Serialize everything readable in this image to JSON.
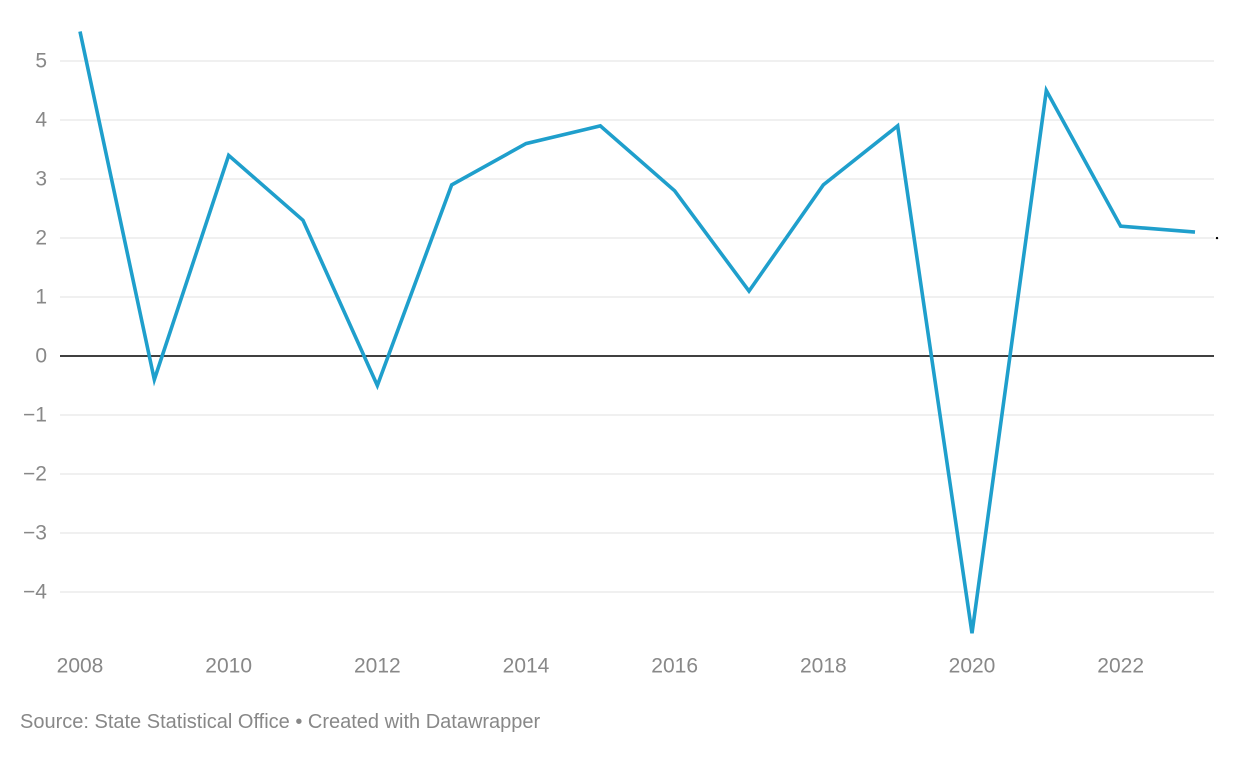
{
  "chart_data": {
    "type": "line",
    "title": "",
    "xlabel": "",
    "ylabel": "",
    "x": [
      2008,
      2009,
      2010,
      2011,
      2012,
      2013,
      2014,
      2015,
      2016,
      2017,
      2018,
      2019,
      2020,
      2021,
      2022,
      2023
    ],
    "series": [
      {
        "values": [
          5.5,
          -0.4,
          3.4,
          2.3,
          -0.5,
          2.9,
          3.6,
          3.9,
          2.8,
          1.1,
          2.9,
          3.9,
          -4.7,
          4.5,
          2.2,
          2.1
        ],
        "color": "#1f9fcc"
      }
    ],
    "x_ticks": [
      "2008",
      "2010",
      "2012",
      "2014",
      "2016",
      "2018",
      "2020",
      "2022"
    ],
    "y_ticks": [
      "5",
      "4",
      "3",
      "2",
      "1",
      "0",
      "−1",
      "−2",
      "−3",
      "−4"
    ],
    "y_tick_values": [
      5,
      4,
      3,
      2,
      1,
      0,
      -1,
      -2,
      -3,
      -4
    ],
    "ylim": [
      -4.7,
      5.5
    ],
    "xlim": [
      2008,
      2023
    ],
    "grid": true,
    "legend": "none",
    "zero_line_color": "#000000",
    "grid_color": "#e0e0e0"
  },
  "footer": {
    "source": "Source: State Statistical Office • Created with Datawrapper"
  }
}
